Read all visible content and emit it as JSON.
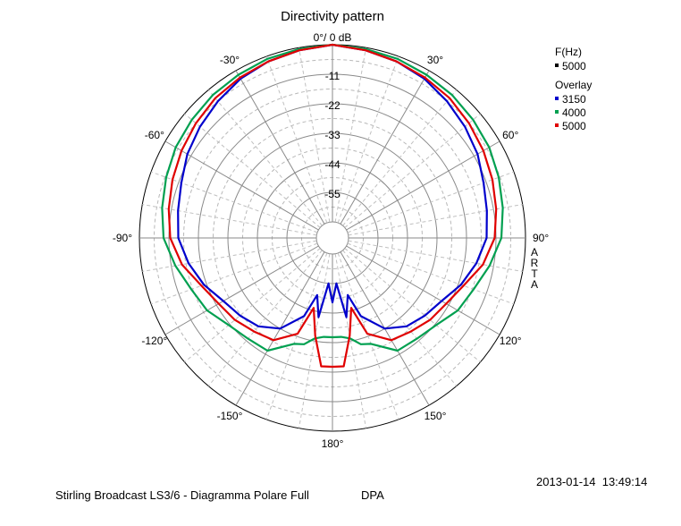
{
  "chart_data": {
    "type": "polar",
    "title": "Directivity pattern",
    "r_unit_label": "0°/ 0 dB",
    "r_tick_labels": [
      "-11",
      "-22",
      "-33",
      "-44",
      "-55"
    ],
    "r_ticks_db": [
      0,
      -11,
      -22,
      -33,
      -44,
      -55
    ],
    "r_min_db": -66,
    "r_max_db": 0,
    "angle_labels": [
      {
        "deg": -30,
        "text": "-30°"
      },
      {
        "deg": 30,
        "text": "30°"
      },
      {
        "deg": -60,
        "text": "-60°"
      },
      {
        "deg": 60,
        "text": "60°"
      },
      {
        "deg": -90,
        "text": "-90°"
      },
      {
        "deg": 90,
        "text": "90°"
      },
      {
        "deg": -120,
        "text": "-120°"
      },
      {
        "deg": 120,
        "text": "120°"
      },
      {
        "deg": -150,
        "text": "-150°"
      },
      {
        "deg": 150,
        "text": "150°"
      },
      {
        "deg": 180,
        "text": "180°"
      }
    ],
    "side_label": "ARTA",
    "legend": {
      "freq_header": "F(Hz)",
      "freq_value": "5000",
      "overlay_header": "Overlay",
      "overlay_entries": [
        "3150",
        "4000",
        "5000"
      ]
    },
    "angles_deg": [
      0,
      10,
      20,
      30,
      40,
      50,
      60,
      70,
      80,
      90,
      100,
      110,
      120,
      130,
      140,
      150,
      160,
      165,
      170,
      175,
      180
    ],
    "series": [
      {
        "name": "3150",
        "color": "#0000cc",
        "values_db": [
          0,
          -1,
          -2,
          -3.5,
          -5.5,
          -7.5,
          -9.5,
          -12,
          -13.5,
          -14.5,
          -17.5,
          -21,
          -25,
          -27,
          -29,
          -33,
          -41,
          -50,
          -42,
          -55,
          -48
        ]
      },
      {
        "name": "4000",
        "color": "#00a050",
        "values_db": [
          0,
          -0.5,
          -1,
          -1.8,
          -2.5,
          -3.5,
          -4.5,
          -6,
          -7.5,
          -9,
          -12.5,
          -16,
          -18,
          -21.5,
          -23,
          -23.5,
          -30,
          -31,
          -34,
          -35,
          -35
        ]
      },
      {
        "name": "5000",
        "color": "#e00000",
        "values_db": [
          0,
          -1,
          -2,
          -3,
          -4,
          -5.5,
          -7,
          -8.5,
          -10,
          -11.5,
          -15,
          -20,
          -23,
          -24.5,
          -26.5,
          -28,
          -34,
          -45,
          -35,
          -24,
          -24
        ]
      }
    ],
    "grid": true
  },
  "footer": {
    "left": "Stirling Broadcast LS3/6 - Diagramma Polare Full",
    "tag": "DPA",
    "date": "2013-01-14  13:49:14"
  }
}
